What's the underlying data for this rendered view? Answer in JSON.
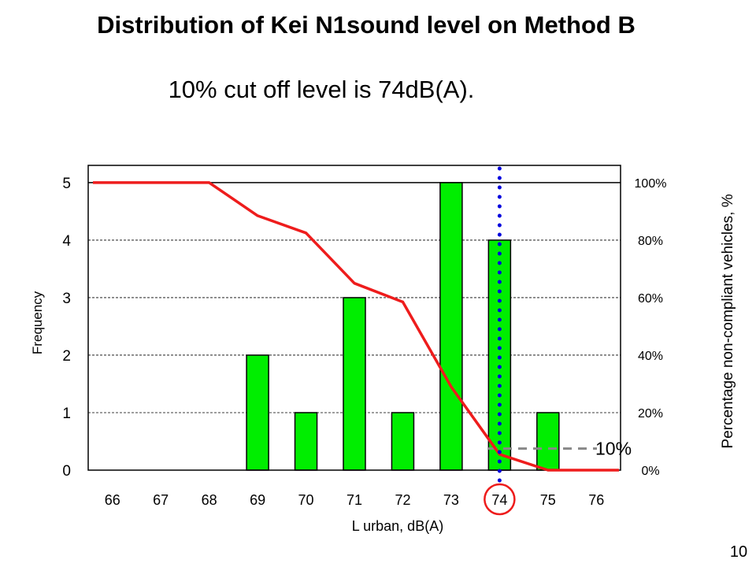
{
  "page": {
    "title": "Distribution of Kei N1sound level on Method B",
    "subtitle": "10% cut off level is 74dB(A).",
    "page_number": "10"
  },
  "chart_data": {
    "type": "bar",
    "title": "Distribution of Kei N1sound level on Method B",
    "xlabel": "L urban, dB(A)",
    "ylabel": "Frequency",
    "y2label": "Percentage non-compliant vehicles, %",
    "categories": [
      "66",
      "67",
      "68",
      "69",
      "70",
      "71",
      "72",
      "73",
      "74",
      "75",
      "76"
    ],
    "series": [
      {
        "type": "bar",
        "axis": "left",
        "color": "#00ee00",
        "values": [
          0,
          0,
          0,
          2,
          1,
          3,
          1,
          5,
          4,
          1,
          0
        ]
      },
      {
        "type": "line",
        "axis": "right",
        "color": "#ee1c1c",
        "values": [
          100,
          100,
          100,
          88.5,
          82.5,
          65,
          58.5,
          29,
          5.5,
          0,
          0
        ]
      }
    ],
    "ylim": [
      0,
      5.3
    ],
    "y_ticks": [
      "0",
      "1",
      "2",
      "3",
      "4",
      "5"
    ],
    "y2lim": [
      0,
      106
    ],
    "y2_ticks": [
      "0%",
      "20%",
      "40%",
      "60%",
      "80%",
      "100%"
    ],
    "grid": "horizontal-dashed",
    "annotations": {
      "cutoff_x": "74",
      "cutoff_line_color": "#0000dd",
      "highlight_circle_color": "#ee1c1c",
      "reference_level": 7.5,
      "reference_label": "10%",
      "reference_line_color": "#888888"
    }
  }
}
